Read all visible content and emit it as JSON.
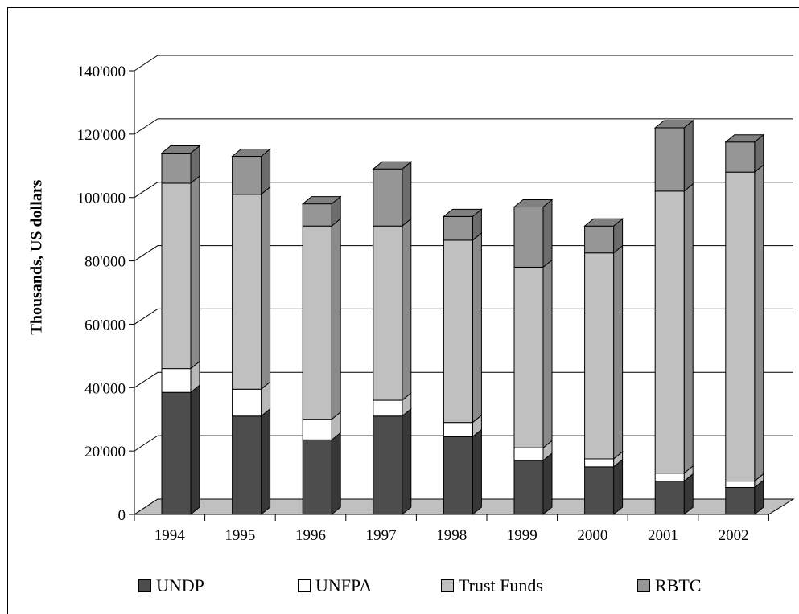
{
  "chart_data": {
    "type": "bar",
    "stacked": true,
    "three_d": true,
    "title": "",
    "xlabel": "",
    "ylabel": "Thousands, US dollars",
    "ylim": [
      0,
      140000
    ],
    "yticks": [
      0,
      20000,
      40000,
      60000,
      80000,
      100000,
      120000,
      140000
    ],
    "ytick_labels": [
      "0",
      "20'000",
      "40'000",
      "60'000",
      "80'000",
      "100'000",
      "120'000",
      "140'000"
    ],
    "grid": true,
    "legend_position": "bottom",
    "categories": [
      "1994",
      "1995",
      "1996",
      "1997",
      "1998",
      "1999",
      "2000",
      "2001",
      "2002"
    ],
    "series": [
      {
        "name": "UNDP",
        "color": "#4d4d4d",
        "values": [
          38500,
          31000,
          23500,
          31000,
          24500,
          17000,
          15000,
          10500,
          8500
        ]
      },
      {
        "name": "UNFPA",
        "color": "#ffffff",
        "values": [
          7500,
          8500,
          6500,
          5000,
          4500,
          4000,
          2500,
          2500,
          2000
        ]
      },
      {
        "name": "Trust Funds",
        "color": "#c0c0c0",
        "values": [
          58500,
          61500,
          61000,
          55000,
          57500,
          57000,
          65000,
          89000,
          97500
        ]
      },
      {
        "name": "RBTC",
        "color": "#969696",
        "values": [
          9500,
          12000,
          7000,
          18000,
          7500,
          19000,
          8500,
          20000,
          9500
        ]
      }
    ]
  }
}
